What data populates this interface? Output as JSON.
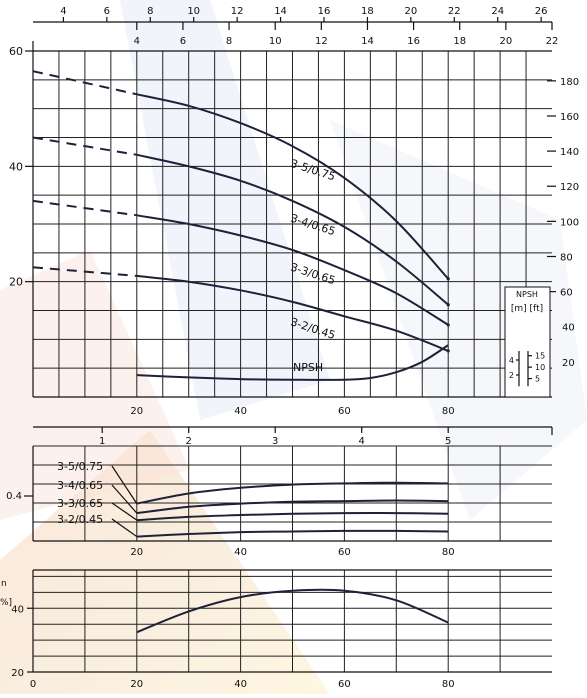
{
  "chart_data": [
    {
      "type": "line",
      "panel": "head",
      "top_axis_1": {
        "ticks": [
          4,
          6,
          8,
          10,
          12,
          14,
          16,
          18,
          20,
          22,
          24,
          26
        ],
        "range": [
          2.6,
          26.5
        ]
      },
      "top_axis_2": {
        "ticks": [
          4,
          6,
          8,
          10,
          12,
          14,
          16,
          18,
          20,
          22
        ],
        "range": [
          -0.5,
          22
        ]
      },
      "x_ticks": [
        20,
        40,
        60,
        80
      ],
      "xlim": [
        0,
        100
      ],
      "left_ticks": [
        20,
        40,
        60
      ],
      "ylim": [
        0,
        60
      ],
      "right_ticks": [
        60,
        80,
        100,
        120,
        140,
        160,
        180
      ],
      "right_range": [
        0,
        197
      ],
      "series": [
        {
          "name": "3-5/0.75",
          "x": [
            20,
            30,
            40,
            50,
            60,
            70,
            80
          ],
          "y": [
            52.5,
            50.5,
            47.5,
            43.5,
            38,
            30.5,
            20.5
          ],
          "ext_x": [
            0,
            20
          ],
          "ext_y": [
            56.5,
            52.5
          ]
        },
        {
          "name": "3-4/0.65",
          "x": [
            20,
            30,
            40,
            50,
            60,
            70,
            80
          ],
          "y": [
            42,
            40,
            37.5,
            34,
            29.5,
            23.5,
            16
          ],
          "ext_x": [
            0,
            20
          ],
          "ext_y": [
            45,
            42
          ]
        },
        {
          "name": "3-3/0.65",
          "x": [
            20,
            30,
            40,
            50,
            60,
            70,
            80
          ],
          "y": [
            31.5,
            30,
            28,
            25.5,
            22,
            18,
            12.5
          ],
          "ext_x": [
            0,
            20
          ],
          "ext_y": [
            34,
            31.5
          ]
        },
        {
          "name": "3-2/0.45",
          "x": [
            20,
            30,
            40,
            50,
            60,
            70,
            80
          ],
          "y": [
            21,
            20,
            18.5,
            16.5,
            14,
            11.5,
            8
          ],
          "ext_x": [
            0,
            20
          ],
          "ext_y": [
            22.5,
            21
          ]
        }
      ],
      "label_pos": [
        {
          "x": 49.5,
          "y": 40
        },
        {
          "x": 49.5,
          "y": 30.5
        },
        {
          "x": 49.5,
          "y": 22
        },
        {
          "x": 49.5,
          "y": 12.5
        }
      ],
      "npsh": {
        "name": "NPSH",
        "x": [
          20,
          30,
          40,
          50,
          60,
          65,
          70,
          75,
          80
        ],
        "y": [
          3.8,
          3.4,
          3.1,
          3.0,
          3.0,
          3.3,
          4.3,
          6.1,
          9.0
        ],
        "label_pos": {
          "x": 53,
          "y": 4.5
        }
      },
      "npsh_inset": {
        "title": "NPSH",
        "units": "[m]  [ft]",
        "m_ticks": [
          2,
          4
        ],
        "ft_ticks": [
          5,
          10,
          15
        ],
        "right_ticks": [
          20,
          40
        ]
      }
    },
    {
      "type": "line",
      "panel": "power",
      "top_axis": {
        "ticks": [
          1,
          2,
          3,
          4,
          5
        ],
        "range": [
          0.2,
          6.2
        ]
      },
      "x_ticks": [
        20,
        40,
        60,
        80
      ],
      "xlim": [
        0,
        100
      ],
      "left_ticks": [
        0.4
      ],
      "series": [
        {
          "name": "3-5/0.75",
          "x": [
            20,
            30,
            40,
            50,
            60,
            70,
            80
          ],
          "y": [
            4.55,
            3.75,
            3.3,
            3.05,
            2.95,
            2.9,
            2.95
          ]
        },
        {
          "name": "3-4/0.65",
          "x": [
            20,
            30,
            40,
            50,
            60,
            70,
            80
          ],
          "y": [
            5.3,
            4.8,
            4.55,
            4.4,
            4.35,
            4.3,
            4.35
          ]
        },
        {
          "name": "3-3/0.65",
          "x": [
            20,
            30,
            40,
            50,
            60,
            70,
            80
          ],
          "y": [
            5.85,
            5.6,
            5.45,
            5.35,
            5.3,
            5.3,
            5.35
          ]
        },
        {
          "name": "3-2/0.45",
          "x": [
            20,
            30,
            40,
            50,
            60,
            70,
            80
          ],
          "y": [
            7.15,
            6.95,
            6.8,
            6.75,
            6.7,
            6.7,
            6.75
          ]
        }
      ]
    },
    {
      "type": "line",
      "panel": "efficiency",
      "x_ticks": [
        0,
        20,
        40,
        60,
        80
      ],
      "xlim": [
        0,
        100
      ],
      "left_ticks": [
        20,
        40
      ],
      "ylim": [
        20,
        52
      ],
      "partial_labels": [
        "n",
        "%]"
      ],
      "series": [
        {
          "name": "",
          "x": [
            20,
            30,
            40,
            50,
            60,
            70,
            80
          ],
          "y": [
            32.5,
            39,
            43.5,
            45.5,
            45.5,
            42.5,
            35.5
          ]
        }
      ]
    }
  ]
}
